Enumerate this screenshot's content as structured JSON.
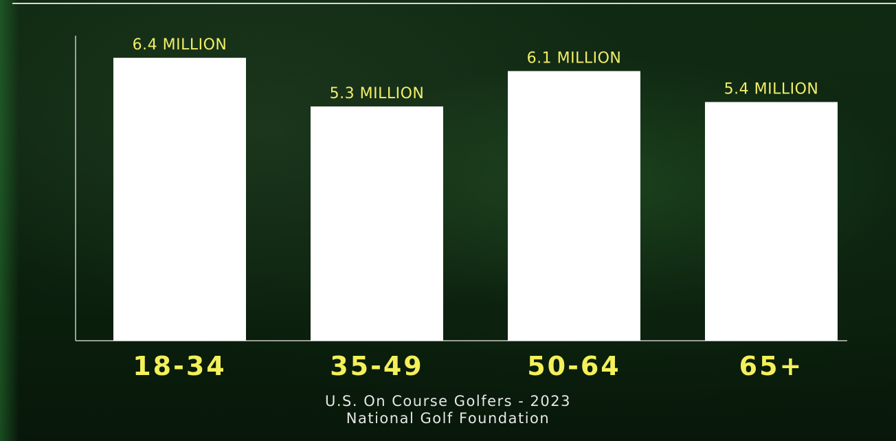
{
  "chart_data": {
    "type": "bar",
    "categories": [
      "18-34",
      "35-49",
      "50-64",
      "65+"
    ],
    "values": [
      6.4,
      5.3,
      6.1,
      5.4
    ],
    "data_labels": [
      "6.4 MILLION",
      "5.3 MILLION",
      "6.1 MILLION",
      "5.4 MILLION"
    ],
    "unit": "MILLION",
    "ylim": [
      0,
      6.9
    ],
    "grid": false,
    "legend": "none",
    "colors": {
      "bar": "#ffffff",
      "data_label": "#f2ee6a",
      "category_label": "#f3f05a",
      "axis": "#c9c9c9",
      "caption": "#e6e6e6"
    }
  },
  "caption": {
    "line1": "U.S. On Course Golfers - 2023",
    "line2": "National Golf Foundation"
  }
}
